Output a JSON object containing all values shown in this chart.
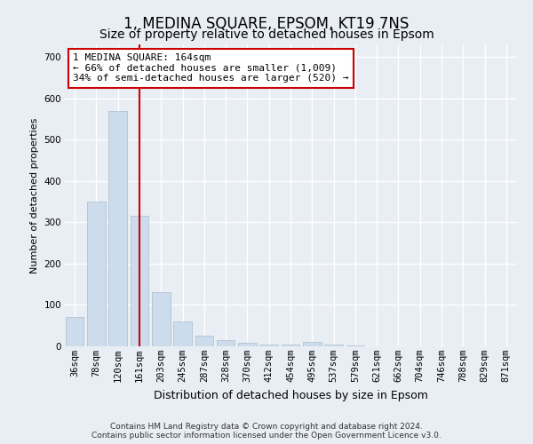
{
  "title": "1, MEDINA SQUARE, EPSOM, KT19 7NS",
  "subtitle": "Size of property relative to detached houses in Epsom",
  "xlabel": "Distribution of detached houses by size in Epsom",
  "ylabel": "Number of detached properties",
  "categories": [
    "36sqm",
    "78sqm",
    "120sqm",
    "161sqm",
    "203sqm",
    "245sqm",
    "287sqm",
    "328sqm",
    "370sqm",
    "412sqm",
    "454sqm",
    "495sqm",
    "537sqm",
    "579sqm",
    "621sqm",
    "662sqm",
    "704sqm",
    "746sqm",
    "788sqm",
    "829sqm",
    "871sqm"
  ],
  "values": [
    70,
    350,
    570,
    315,
    130,
    60,
    25,
    15,
    8,
    5,
    5,
    10,
    5,
    3,
    0,
    0,
    0,
    0,
    0,
    0,
    0
  ],
  "bar_color": "#ccdcec",
  "bar_edge_color": "#aabccc",
  "vline_color": "#cc0000",
  "annotation_text": "1 MEDINA SQUARE: 164sqm\n← 66% of detached houses are smaller (1,009)\n34% of semi-detached houses are larger (520) →",
  "annotation_box_color": "#ffffff",
  "annotation_box_edge": "#cc0000",
  "ylim": [
    0,
    730
  ],
  "yticks": [
    0,
    100,
    200,
    300,
    400,
    500,
    600,
    700
  ],
  "footer": "Contains HM Land Registry data © Crown copyright and database right 2024.\nContains public sector information licensed under the Open Government Licence v3.0.",
  "bg_color": "#e8eef4",
  "plot_bg_color": "#e8eef4",
  "grid_color": "#ffffff",
  "title_fontsize": 12,
  "subtitle_fontsize": 10,
  "xlabel_fontsize": 9,
  "ylabel_fontsize": 8,
  "tick_fontsize": 7.5,
  "footer_fontsize": 6.5,
  "annotation_fontsize": 8
}
